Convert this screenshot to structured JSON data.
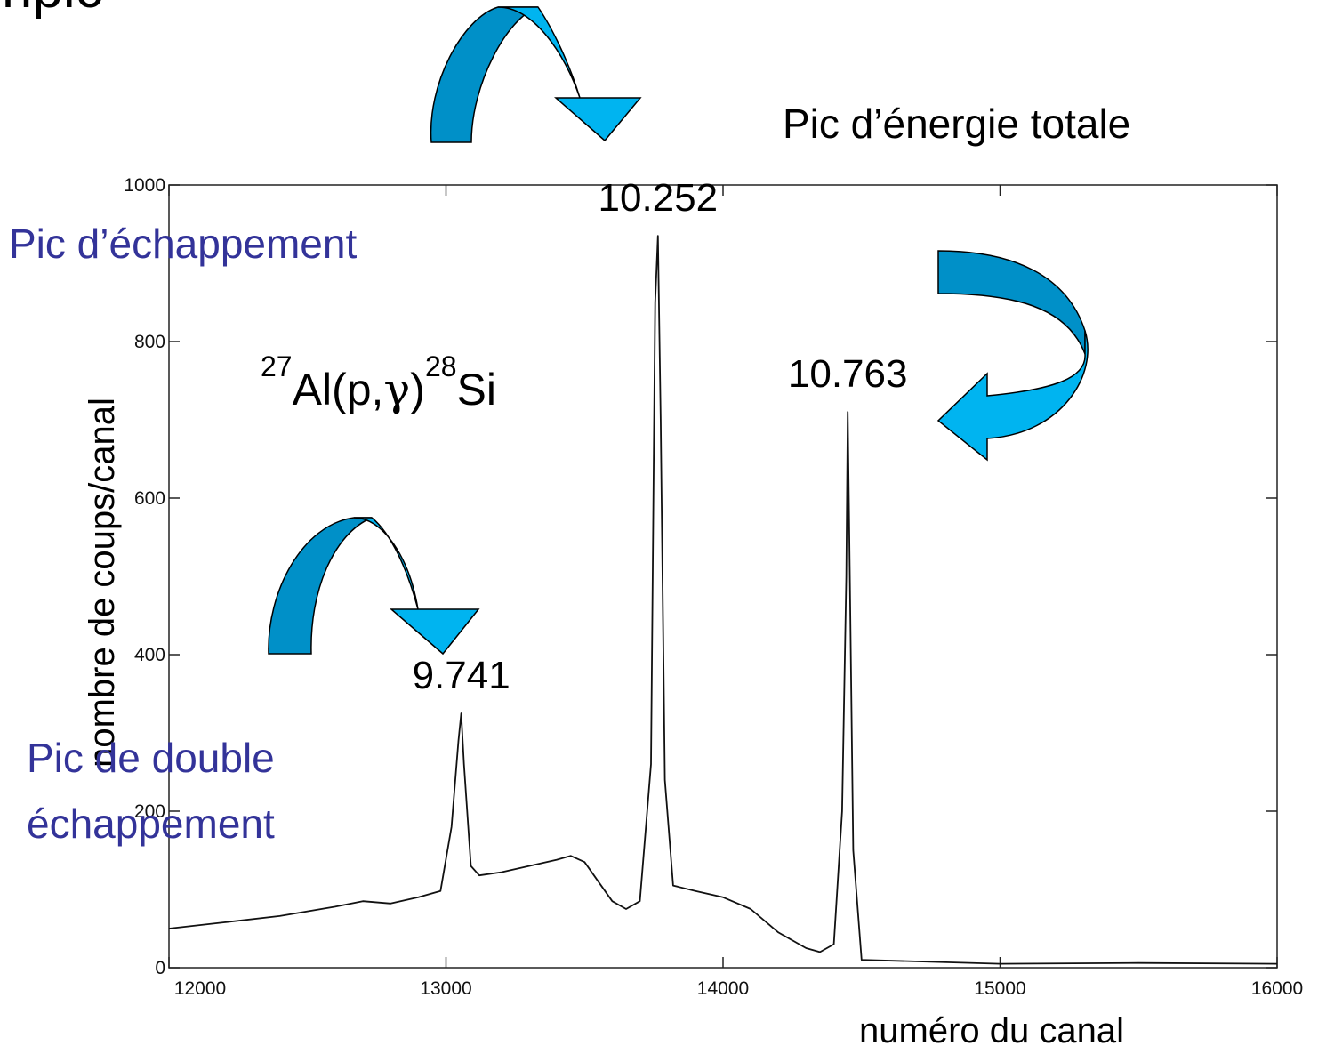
{
  "slide": {
    "title_fragment": "ripic ",
    "reaction": {
      "pre1": "27",
      "base1": "Al(p,",
      "gamma": "γ",
      "close": ")",
      "pre2": "28",
      "base2": "Si"
    },
    "annotations": {
      "full_energy": "Pic d’énergie totale",
      "escape": "Pic d’échappement",
      "double_escape_line1": "Pic de double",
      "double_escape_line2": "échappement"
    },
    "colors": {
      "annotation_blue": "#333399",
      "arrow_light": "#00b4f0",
      "arrow_dark": "#0090c8",
      "arrow_outline": "#000000",
      "spectrum": "#111111"
    },
    "arrow_icons": [
      "curved-arrow-icon",
      "curved-arrow-icon",
      "curved-arrow-icon"
    ]
  },
  "chart_data": {
    "type": "line",
    "xlabel": "numéro du canal",
    "ylabel": "nombre de coups/canal",
    "xlim": [
      12000,
      16000
    ],
    "ylim": [
      0,
      1000
    ],
    "xticks": [
      12000,
      13000,
      14000,
      15000,
      16000
    ],
    "yticks": [
      0,
      200,
      400,
      600,
      800,
      1000
    ],
    "grid": false,
    "peak_labels": [
      {
        "text": "9.741",
        "x": 13055,
        "y": 325
      },
      {
        "text": "10.252",
        "x": 13765,
        "y": 935
      },
      {
        "text": "10.763",
        "x": 14450,
        "y": 710
      }
    ],
    "series": [
      {
        "x": [
          12000,
          12200,
          12400,
          12600,
          12700,
          12800,
          12900,
          12980,
          13020,
          13045,
          13055,
          13065,
          13090,
          13120,
          13200,
          13300,
          13400,
          13450,
          13500,
          13550,
          13600,
          13650,
          13700,
          13740,
          13755,
          13765,
          13775,
          13790,
          13820,
          13900,
          14000,
          14100,
          14200,
          14300,
          14350,
          14400,
          14430,
          14445,
          14450,
          14455,
          14470,
          14500,
          15000,
          15500,
          16000
        ],
        "y": [
          50,
          58,
          66,
          78,
          85,
          82,
          90,
          98,
          180,
          290,
          325,
          260,
          130,
          118,
          122,
          130,
          138,
          143,
          135,
          110,
          85,
          75,
          85,
          260,
          850,
          935,
          700,
          240,
          105,
          98,
          90,
          75,
          45,
          25,
          20,
          30,
          200,
          500,
          710,
          580,
          150,
          10,
          5,
          6,
          5
        ]
      }
    ]
  }
}
